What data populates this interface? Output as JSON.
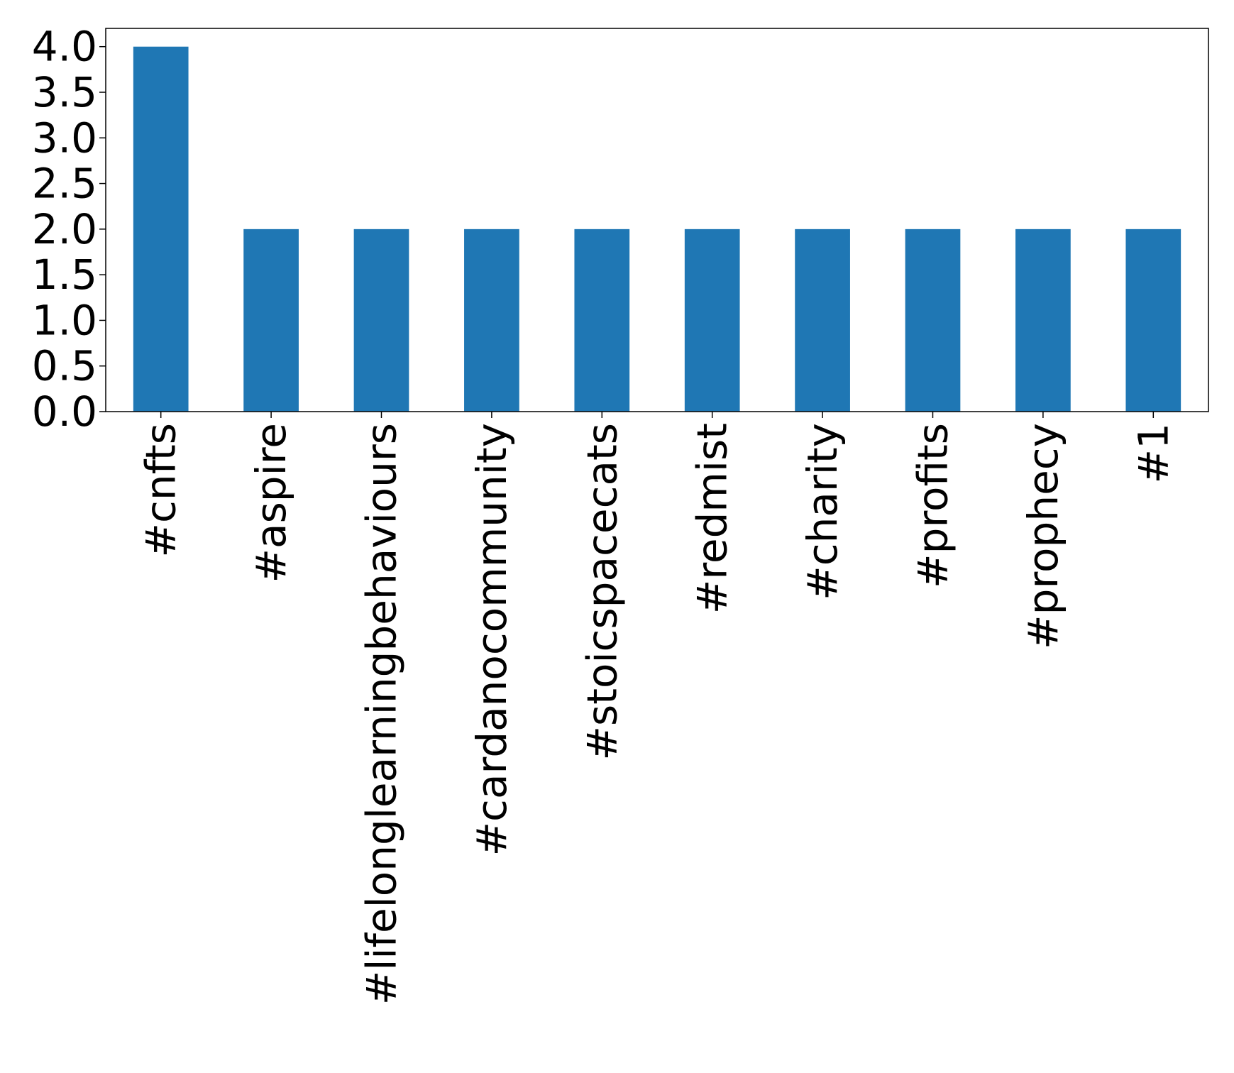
{
  "chart_data": {
    "type": "bar",
    "title": "",
    "xlabel": "",
    "ylabel": "",
    "categories": [
      "#cnfts",
      "#aspire",
      "#lifelonglearningbehaviours",
      "#cardanocommunity",
      "#stoicspacecats",
      "#redmist",
      "#charity",
      "#profits",
      "#prophecy",
      "#1"
    ],
    "values": [
      4,
      2,
      2,
      2,
      2,
      2,
      2,
      2,
      2,
      2
    ],
    "ylim": [
      0,
      4.2
    ],
    "yticks": [
      0.0,
      0.5,
      1.0,
      1.5,
      2.0,
      2.5,
      3.0,
      3.5,
      4.0
    ],
    "ytick_labels": [
      "0.0",
      "0.5",
      "1.0",
      "1.5",
      "2.0",
      "2.5",
      "3.0",
      "3.5",
      "4.0"
    ],
    "bar_color": "#1f77b4",
    "grid": false,
    "legend": "none",
    "xtick_rotation": "vertical"
  }
}
